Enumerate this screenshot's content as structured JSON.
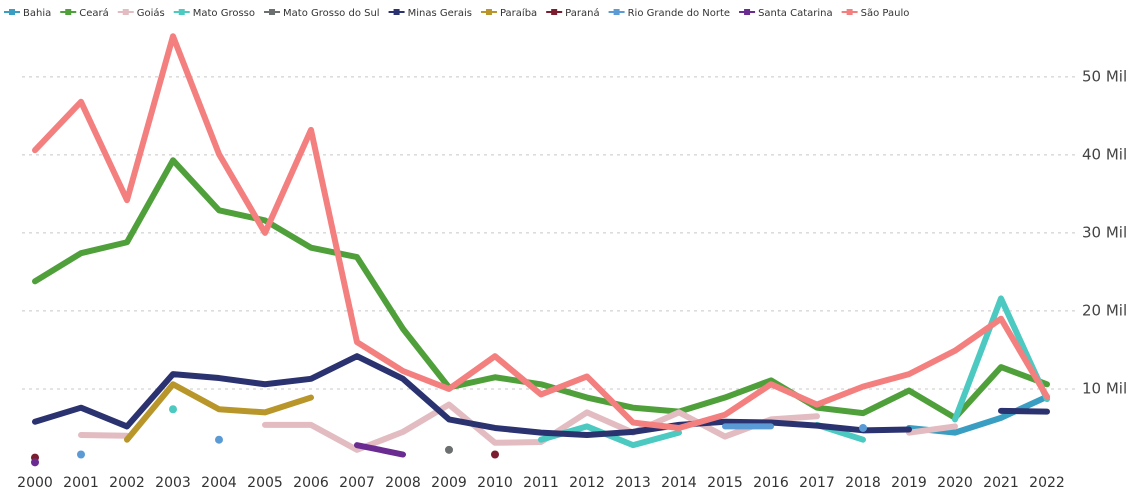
{
  "chart_data": {
    "type": "line",
    "x": [
      "2000",
      "2001",
      "2002",
      "2003",
      "2004",
      "2005",
      "2006",
      "2007",
      "2008",
      "2009",
      "2010",
      "2011",
      "2012",
      "2013",
      "2014",
      "2015",
      "2016",
      "2017",
      "2018",
      "2019",
      "2020",
      "2021",
      "2022"
    ],
    "ylim": [
      0,
      56000
    ],
    "yticks": [
      {
        "value": 10000,
        "label": "10 Mil"
      },
      {
        "value": 20000,
        "label": "20 Mil"
      },
      {
        "value": 30000,
        "label": "30 Mil"
      },
      {
        "value": 40000,
        "label": "40 Mil"
      },
      {
        "value": 50000,
        "label": "50 Mil"
      }
    ],
    "grid": true,
    "legend": "top",
    "series": [
      {
        "name": "Bahia",
        "color": "#3a9ec2",
        "values": [
          null,
          null,
          null,
          null,
          null,
          null,
          null,
          null,
          null,
          null,
          null,
          null,
          null,
          null,
          null,
          null,
          null,
          null,
          null,
          5000,
          4400,
          6300,
          9000
        ]
      },
      {
        "name": "Ceará",
        "color": "#4fa03b",
        "values": [
          23800,
          27400,
          28800,
          39300,
          32900,
          31600,
          28100,
          26900,
          17700,
          10200,
          11500,
          10600,
          8900,
          7600,
          7100,
          8900,
          11100,
          7600,
          6900,
          9800,
          6300,
          12800,
          10600
        ]
      },
      {
        "name": "Goiás",
        "color": "#e2bcc1",
        "values": [
          null,
          4100,
          4000,
          null,
          null,
          5400,
          5400,
          2200,
          4500,
          8000,
          3100,
          3200,
          7000,
          4400,
          7000,
          3900,
          6100,
          6500,
          null,
          4400,
          5200,
          null,
          null
        ]
      },
      {
        "name": "Mato Grosso",
        "color": "#4cc9c1",
        "values": [
          null,
          null,
          null,
          7400,
          null,
          null,
          null,
          null,
          null,
          null,
          null,
          3500,
          5200,
          2800,
          4400,
          null,
          null,
          5400,
          3500,
          null,
          6100,
          21600,
          8700
        ]
      },
      {
        "name": "Mato Grosso do Sul",
        "color": "#6b6f70",
        "values": [
          null,
          null,
          null,
          null,
          null,
          null,
          null,
          null,
          null,
          2200,
          null,
          null,
          null,
          null,
          null,
          null,
          null,
          null,
          null,
          null,
          null,
          null,
          null
        ]
      },
      {
        "name": "Minas Gerais",
        "color": "#2b3270",
        "values": [
          5800,
          7600,
          5200,
          11900,
          11400,
          10600,
          11300,
          14200,
          11300,
          6100,
          5000,
          4400,
          4100,
          4500,
          5400,
          5800,
          5700,
          5300,
          4700,
          4800,
          null,
          7200,
          7100
        ]
      },
      {
        "name": "Paraíba",
        "color": "#b8962a",
        "values": [
          null,
          null,
          3500,
          10600,
          7400,
          7000,
          8900,
          null,
          null,
          null,
          null,
          null,
          null,
          null,
          null,
          null,
          null,
          null,
          null,
          null,
          null,
          null,
          null
        ]
      },
      {
        "name": "Paraná",
        "color": "#7a1d2e",
        "values": [
          1200,
          null,
          null,
          null,
          null,
          null,
          null,
          null,
          null,
          null,
          1600,
          null,
          null,
          null,
          null,
          null,
          null,
          null,
          null,
          null,
          null,
          null,
          null
        ]
      },
      {
        "name": "Rio Grande do Norte",
        "color": "#5b9bd5",
        "values": [
          null,
          1600,
          null,
          null,
          3500,
          null,
          null,
          null,
          null,
          null,
          null,
          null,
          null,
          null,
          null,
          5200,
          5200,
          null,
          5000,
          null,
          null,
          null,
          null
        ]
      },
      {
        "name": "Santa Catarina",
        "color": "#6a2c91",
        "values": [
          600,
          null,
          null,
          null,
          null,
          null,
          null,
          2800,
          1600,
          null,
          null,
          null,
          null,
          null,
          null,
          null,
          null,
          null,
          null,
          null,
          null,
          null,
          null
        ]
      },
      {
        "name": "São Paulo",
        "color": "#f47f7f",
        "values": [
          40600,
          46800,
          34200,
          55200,
          40100,
          30000,
          43200,
          16000,
          12300,
          10000,
          14200,
          9300,
          11600,
          5700,
          5000,
          6700,
          10600,
          8000,
          10300,
          11900,
          14900,
          19000,
          9000
        ]
      }
    ]
  }
}
